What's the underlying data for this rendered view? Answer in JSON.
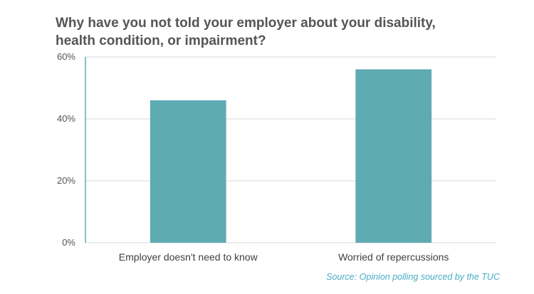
{
  "chart_data": {
    "type": "bar",
    "title": "Why have you not told your employer about your disability, health condition,  or impairment?",
    "categories": [
      "Employer doesn't need to know",
      "Worried of repercussions"
    ],
    "values": [
      46,
      56
    ],
    "value_unit": "%",
    "ylim": [
      0,
      60
    ],
    "yticks": [
      0,
      20,
      40,
      60
    ],
    "ytick_labels": [
      "0%",
      "20%",
      "40%",
      "60%"
    ],
    "xlabel": "",
    "ylabel": "",
    "grid": true,
    "bar_color": "#5eabb3",
    "grid_color": "#d9d9d9",
    "axis_color": "#5eabb3"
  },
  "source": "Source: Opinion polling sourced by the TUC"
}
